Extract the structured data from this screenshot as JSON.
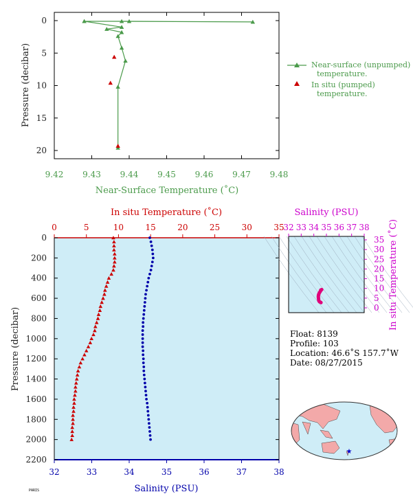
{
  "colors": {
    "green": "#4a9a4a",
    "red": "#cc0000",
    "blue": "#0000aa",
    "magenta": "#cc00cc",
    "panel_bg": "#cfedf7",
    "land": "#f3a9a9",
    "ocean": "#cfedf7"
  },
  "chart_data": [
    {
      "type": "line",
      "xlabel": "Near-Surface Temperature (˚C)",
      "ylabel": "Pressure (decibar)",
      "xlim": [
        9.42,
        9.48
      ],
      "ylim": [
        22,
        -1
      ],
      "x_ticks": [
        "9.42",
        "9.43",
        "9.44",
        "9.45",
        "9.46",
        "9.47",
        "9.48"
      ],
      "y_ticks": [
        "0",
        "5",
        "10",
        "15",
        "20"
      ],
      "legend_position": "right",
      "series": [
        {
          "name": "Near-surface (unpumped) temperature.",
          "color": "#4a9a4a",
          "marker": "triangle",
          "points": [
            [
              9.428,
              0.1
            ],
            [
              9.438,
              0.1
            ],
            [
              9.44,
              0.1
            ],
            [
              9.473,
              0.2
            ],
            [
              9.428,
              0.1
            ],
            [
              9.438,
              1.0
            ],
            [
              9.434,
              1.3
            ],
            [
              9.438,
              1.8
            ],
            [
              9.437,
              2.4
            ],
            [
              9.438,
              4.2
            ],
            [
              9.439,
              6.2
            ],
            [
              9.437,
              10.2
            ],
            [
              9.437,
              19.6
            ]
          ]
        },
        {
          "name": "In situ (pumped) temperature.",
          "color": "#cc0000",
          "marker": "triangle",
          "points": [
            [
              9.436,
              5.6
            ],
            [
              9.435,
              9.6
            ],
            [
              9.437,
              19.3
            ]
          ]
        }
      ]
    },
    {
      "type": "line",
      "title_top": "In situ Temperature (˚C)",
      "xlabel": "Salinity (PSU)",
      "ylabel": "Pressure (decibar)",
      "temp_lim": [
        0,
        35
      ],
      "sal_lim": [
        32,
        38
      ],
      "ylim": [
        2200,
        0
      ],
      "temp_ticks": [
        "0",
        "5",
        "10",
        "15",
        "20",
        "25",
        "30",
        "35"
      ],
      "sal_ticks": [
        "32",
        "33",
        "34",
        "35",
        "36",
        "37",
        "38"
      ],
      "y_ticks": [
        "0",
        "200",
        "400",
        "600",
        "800",
        "1000",
        "1200",
        "1400",
        "1600",
        "1800",
        "2000",
        "2200"
      ],
      "series": [
        {
          "name": "In situ Temperature",
          "axis": "temperature",
          "color": "#cc0000",
          "marker": "triangle",
          "points": [
            [
              9.2,
              0
            ],
            [
              9.3,
              40
            ],
            [
              9.3,
              80
            ],
            [
              9.3,
              120
            ],
            [
              9.4,
              160
            ],
            [
              9.4,
              200
            ],
            [
              9.4,
              240
            ],
            [
              9.3,
              280
            ],
            [
              9.2,
              320
            ],
            [
              8.9,
              360
            ],
            [
              8.5,
              400
            ],
            [
              8.3,
              440
            ],
            [
              8.1,
              480
            ],
            [
              7.9,
              520
            ],
            [
              7.8,
              560
            ],
            [
              7.6,
              600
            ],
            [
              7.4,
              640
            ],
            [
              7.2,
              680
            ],
            [
              7.1,
              720
            ],
            [
              6.9,
              760
            ],
            [
              6.8,
              800
            ],
            [
              6.6,
              840
            ],
            [
              6.4,
              880
            ],
            [
              6.3,
              920
            ],
            [
              6.1,
              960
            ],
            [
              5.8,
              1000
            ],
            [
              5.6,
              1040
            ],
            [
              5.3,
              1080
            ],
            [
              5.0,
              1120
            ],
            [
              4.7,
              1160
            ],
            [
              4.4,
              1200
            ],
            [
              4.1,
              1240
            ],
            [
              3.9,
              1280
            ],
            [
              3.7,
              1320
            ],
            [
              3.6,
              1360
            ],
            [
              3.5,
              1400
            ],
            [
              3.4,
              1440
            ],
            [
              3.3,
              1480
            ],
            [
              3.3,
              1520
            ],
            [
              3.2,
              1560
            ],
            [
              3.1,
              1600
            ],
            [
              3.1,
              1640
            ],
            [
              3.0,
              1680
            ],
            [
              3.0,
              1720
            ],
            [
              2.9,
              1760
            ],
            [
              2.9,
              1800
            ],
            [
              2.9,
              1840
            ],
            [
              2.8,
              1880
            ],
            [
              2.8,
              1920
            ],
            [
              2.8,
              1960
            ],
            [
              2.7,
              2000
            ]
          ]
        },
        {
          "name": "Salinity",
          "axis": "salinity",
          "color": "#0000aa",
          "marker": "circle",
          "points": [
            [
              34.55,
              0
            ],
            [
              34.58,
              40
            ],
            [
              34.6,
              80
            ],
            [
              34.62,
              120
            ],
            [
              34.63,
              160
            ],
            [
              34.64,
              200
            ],
            [
              34.62,
              240
            ],
            [
              34.6,
              280
            ],
            [
              34.58,
              320
            ],
            [
              34.55,
              360
            ],
            [
              34.52,
              400
            ],
            [
              34.5,
              440
            ],
            [
              34.48,
              480
            ],
            [
              34.46,
              520
            ],
            [
              34.44,
              560
            ],
            [
              34.43,
              600
            ],
            [
              34.42,
              640
            ],
            [
              34.41,
              680
            ],
            [
              34.4,
              720
            ],
            [
              34.39,
              760
            ],
            [
              34.38,
              800
            ],
            [
              34.37,
              840
            ],
            [
              34.37,
              880
            ],
            [
              34.36,
              920
            ],
            [
              34.36,
              960
            ],
            [
              34.36,
              1000
            ],
            [
              34.36,
              1040
            ],
            [
              34.36,
              1080
            ],
            [
              34.37,
              1120
            ],
            [
              34.37,
              1160
            ],
            [
              34.38,
              1200
            ],
            [
              34.38,
              1240
            ],
            [
              34.39,
              1280
            ],
            [
              34.39,
              1320
            ],
            [
              34.4,
              1360
            ],
            [
              34.41,
              1400
            ],
            [
              34.42,
              1440
            ],
            [
              34.43,
              1480
            ],
            [
              34.44,
              1520
            ],
            [
              34.45,
              1560
            ],
            [
              34.46,
              1600
            ],
            [
              34.48,
              1640
            ],
            [
              34.49,
              1680
            ],
            [
              34.5,
              1720
            ],
            [
              34.51,
              1760
            ],
            [
              34.52,
              1800
            ],
            [
              34.53,
              1840
            ],
            [
              34.54,
              1880
            ],
            [
              34.55,
              1920
            ],
            [
              34.56,
              1960
            ],
            [
              34.57,
              2000
            ]
          ]
        }
      ]
    },
    {
      "type": "scatter",
      "xlabel": "Salinity (PSU)",
      "ylabel": "In situ Temperature (˚C)",
      "xlim": [
        32,
        38
      ],
      "ylim": [
        0,
        35
      ],
      "x_ticks": [
        "32",
        "33",
        "34",
        "35",
        "36",
        "37",
        "38"
      ],
      "y_ticks": [
        "0",
        "5",
        "10",
        "15",
        "20",
        "25",
        "30",
        "35"
      ],
      "series": [
        {
          "name": "T-S",
          "color": "#e0007a",
          "points": [
            [
              34.55,
              9.2
            ],
            [
              34.6,
              9.3
            ],
            [
              34.63,
              9.4
            ],
            [
              34.6,
              9.3
            ],
            [
              34.55,
              8.9
            ],
            [
              34.5,
              8.3
            ],
            [
              34.46,
              7.9
            ],
            [
              34.43,
              7.6
            ],
            [
              34.4,
              7.1
            ],
            [
              34.38,
              6.8
            ],
            [
              34.37,
              6.4
            ],
            [
              34.36,
              6.1
            ],
            [
              34.36,
              5.6
            ],
            [
              34.37,
              5.0
            ],
            [
              34.38,
              4.4
            ],
            [
              34.39,
              3.9
            ],
            [
              34.41,
              3.5
            ],
            [
              34.43,
              3.3
            ],
            [
              34.46,
              3.1
            ],
            [
              34.5,
              3.0
            ],
            [
              34.53,
              2.9
            ],
            [
              34.56,
              2.8
            ],
            [
              34.57,
              2.7
            ]
          ]
        }
      ]
    }
  ],
  "info": {
    "float": "Float:  8139",
    "profile": "Profile:  103",
    "location": "Location:  46.6˚S  157.7˚W",
    "date": "Date:  08/27/2015"
  },
  "footer": {
    "stamp": "PARIS"
  }
}
